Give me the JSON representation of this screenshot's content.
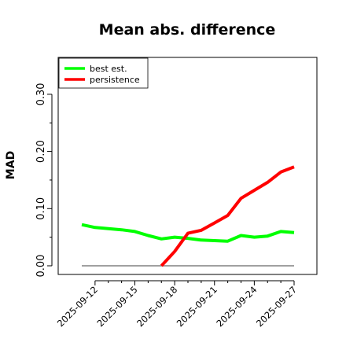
{
  "chart_data": {
    "type": "line",
    "title": "Mean abs. difference",
    "xlabel": "",
    "ylabel": "MAD",
    "ylim": [
      0,
      0.36
    ],
    "yticks": [
      0.0,
      0.1,
      0.2,
      0.3
    ],
    "ytick_labels": [
      "0.00",
      "0.10",
      "0.20",
      "0.30"
    ],
    "x": [
      "2025-09-11",
      "2025-09-12",
      "2025-09-13",
      "2025-09-14",
      "2025-09-15",
      "2025-09-16",
      "2025-09-17",
      "2025-09-18",
      "2025-09-19",
      "2025-09-20",
      "2025-09-21",
      "2025-09-22",
      "2025-09-23",
      "2025-09-24",
      "2025-09-25",
      "2025-09-26",
      "2025-09-27"
    ],
    "xtick_labels": [
      "2025-09-12",
      "2025-09-15",
      "2025-09-18",
      "2025-09-21",
      "2025-09-24",
      "2025-09-27"
    ],
    "zero_line": 0,
    "legend_position": "top-left",
    "series": [
      {
        "name": "best est.",
        "color": "#00ff00",
        "values": [
          0.072,
          0.067,
          0.065,
          0.063,
          0.06,
          0.053,
          0.047,
          0.05,
          0.048,
          0.045,
          0.044,
          0.043,
          0.053,
          0.05,
          0.052,
          0.06,
          0.058
        ]
      },
      {
        "name": "persistence",
        "color": "#ff0000",
        "values": [
          null,
          null,
          null,
          null,
          null,
          null,
          0.0,
          0.025,
          0.057,
          0.062,
          0.075,
          0.088,
          0.118,
          0.132,
          0.146,
          0.164,
          0.173
        ]
      }
    ]
  }
}
